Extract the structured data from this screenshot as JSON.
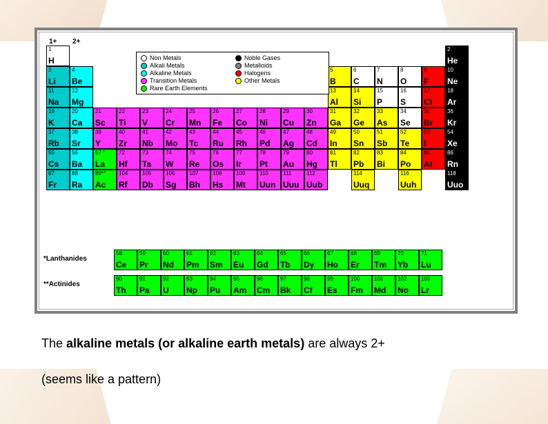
{
  "colors": {
    "nonmetal": "#ffffff",
    "alkali": "#00cccc",
    "alkaline": "#00ffff",
    "transition": "#ff33ff",
    "rare": "#00ff00",
    "noble": "#000000",
    "metalloid": "#808080",
    "halogen": "#ff0000",
    "other": "#ffff00"
  },
  "group_headers": [
    "1+",
    "2+"
  ],
  "legend": [
    {
      "label": "Non Metals",
      "ckey": "nonmetal"
    },
    {
      "label": "Noble Gases",
      "ckey": "noble"
    },
    {
      "label": "Alkali Metals",
      "ckey": "alkali"
    },
    {
      "label": "Metalloids",
      "ckey": "metalloid"
    },
    {
      "label": "Alkaline Metals",
      "ckey": "alkaline"
    },
    {
      "label": "Halogens",
      "ckey": "halogen"
    },
    {
      "label": "Transition Metals",
      "ckey": "transition"
    },
    {
      "label": "Other Metals",
      "ckey": "other"
    },
    {
      "label": "Rare Earth Elements",
      "ckey": "rare"
    }
  ],
  "rows": [
    [
      {
        "n": "1",
        "s": "H",
        "c": "nonmetal"
      },
      null,
      null,
      null,
      null,
      null,
      null,
      null,
      null,
      null,
      null,
      null,
      null,
      null,
      null,
      null,
      null,
      {
        "n": "2",
        "s": "He",
        "c": "noble"
      }
    ],
    [
      {
        "n": "3",
        "s": "Li",
        "c": "alkali"
      },
      {
        "n": "4",
        "s": "Be",
        "c": "alkaline"
      },
      null,
      null,
      null,
      null,
      null,
      null,
      null,
      null,
      null,
      null,
      {
        "n": "5",
        "s": "B",
        "c": "other"
      },
      {
        "n": "6",
        "s": "C",
        "c": "nonmetal"
      },
      {
        "n": "7",
        "s": "N",
        "c": "nonmetal"
      },
      {
        "n": "8",
        "s": "O",
        "c": "nonmetal"
      },
      {
        "n": "9",
        "s": "F",
        "c": "halogen"
      },
      {
        "n": "10",
        "s": "Ne",
        "c": "noble"
      }
    ],
    [
      {
        "n": "11",
        "s": "Na",
        "c": "alkali"
      },
      {
        "n": "12",
        "s": "Mg",
        "c": "alkaline"
      },
      null,
      null,
      null,
      null,
      null,
      null,
      null,
      null,
      null,
      null,
      {
        "n": "13",
        "s": "Al",
        "c": "other"
      },
      {
        "n": "14",
        "s": "Si",
        "c": "other"
      },
      {
        "n": "15",
        "s": "P",
        "c": "nonmetal"
      },
      {
        "n": "16",
        "s": "S",
        "c": "nonmetal"
      },
      {
        "n": "17",
        "s": "Cl",
        "c": "halogen"
      },
      {
        "n": "18",
        "s": "Ar",
        "c": "noble"
      }
    ],
    [
      {
        "n": "19",
        "s": "K",
        "c": "alkali"
      },
      {
        "n": "20",
        "s": "Ca",
        "c": "alkaline"
      },
      {
        "n": "21",
        "s": "Sc",
        "c": "transition"
      },
      {
        "n": "22",
        "s": "Ti",
        "c": "transition"
      },
      {
        "n": "23",
        "s": "V",
        "c": "transition"
      },
      {
        "n": "24",
        "s": "Cr",
        "c": "transition"
      },
      {
        "n": "25",
        "s": "Mn",
        "c": "transition"
      },
      {
        "n": "26",
        "s": "Fe",
        "c": "transition"
      },
      {
        "n": "27",
        "s": "Co",
        "c": "transition"
      },
      {
        "n": "28",
        "s": "Ni",
        "c": "transition"
      },
      {
        "n": "29",
        "s": "Cu",
        "c": "transition"
      },
      {
        "n": "30",
        "s": "Zn",
        "c": "transition"
      },
      {
        "n": "31",
        "s": "Ga",
        "c": "other"
      },
      {
        "n": "32",
        "s": "Ge",
        "c": "other"
      },
      {
        "n": "33",
        "s": "As",
        "c": "other"
      },
      {
        "n": "34",
        "s": "Se",
        "c": "nonmetal"
      },
      {
        "n": "35",
        "s": "Br",
        "c": "halogen"
      },
      {
        "n": "36",
        "s": "Kr",
        "c": "noble"
      }
    ],
    [
      {
        "n": "37",
        "s": "Rb",
        "c": "alkali"
      },
      {
        "n": "38",
        "s": "Sr",
        "c": "alkaline"
      },
      {
        "n": "39",
        "s": "Y",
        "c": "transition"
      },
      {
        "n": "40",
        "s": "Zr",
        "c": "transition"
      },
      {
        "n": "41",
        "s": "Nb",
        "c": "transition"
      },
      {
        "n": "42",
        "s": "Mo",
        "c": "transition"
      },
      {
        "n": "43",
        "s": "Tc",
        "c": "transition"
      },
      {
        "n": "44",
        "s": "Ru",
        "c": "transition"
      },
      {
        "n": "45",
        "s": "Rh",
        "c": "transition"
      },
      {
        "n": "46",
        "s": "Pd",
        "c": "transition"
      },
      {
        "n": "47",
        "s": "Ag",
        "c": "transition"
      },
      {
        "n": "48",
        "s": "Cd",
        "c": "transition"
      },
      {
        "n": "49",
        "s": "In",
        "c": "other"
      },
      {
        "n": "50",
        "s": "Sn",
        "c": "other"
      },
      {
        "n": "51",
        "s": "Sb",
        "c": "other"
      },
      {
        "n": "52",
        "s": "Te",
        "c": "other"
      },
      {
        "n": "53",
        "s": "I",
        "c": "halogen"
      },
      {
        "n": "54",
        "s": "Xe",
        "c": "noble"
      }
    ],
    [
      {
        "n": "55",
        "s": "Cs",
        "c": "alkali"
      },
      {
        "n": "56",
        "s": "Ba",
        "c": "alkaline"
      },
      {
        "n": "57 *",
        "s": "La",
        "c": "rare"
      },
      {
        "n": "72",
        "s": "Hf",
        "c": "transition"
      },
      {
        "n": "73",
        "s": "Ta",
        "c": "transition"
      },
      {
        "n": "74",
        "s": "W",
        "c": "transition"
      },
      {
        "n": "75",
        "s": "Re",
        "c": "transition"
      },
      {
        "n": "76",
        "s": "Os",
        "c": "transition"
      },
      {
        "n": "77",
        "s": "Ir",
        "c": "transition"
      },
      {
        "n": "78",
        "s": "Pt",
        "c": "transition"
      },
      {
        "n": "79",
        "s": "Au",
        "c": "transition"
      },
      {
        "n": "80",
        "s": "Hg",
        "c": "transition"
      },
      {
        "n": "81",
        "s": "Tl",
        "c": "other"
      },
      {
        "n": "82",
        "s": "Pb",
        "c": "other"
      },
      {
        "n": "83",
        "s": "Bi",
        "c": "other"
      },
      {
        "n": "84",
        "s": "Po",
        "c": "other"
      },
      {
        "n": "85",
        "s": "At",
        "c": "halogen"
      },
      {
        "n": "86",
        "s": "Rn",
        "c": "noble"
      }
    ],
    [
      {
        "n": "87",
        "s": "Fr",
        "c": "alkali"
      },
      {
        "n": "88",
        "s": "Ra",
        "c": "alkaline"
      },
      {
        "n": "89**",
        "s": "Ac",
        "c": "rare"
      },
      {
        "n": "104",
        "s": "Rf",
        "c": "transition"
      },
      {
        "n": "105",
        "s": "Db",
        "c": "transition"
      },
      {
        "n": "106",
        "s": "Sg",
        "c": "transition"
      },
      {
        "n": "107",
        "s": "Bh",
        "c": "transition"
      },
      {
        "n": "108",
        "s": "Hs",
        "c": "transition"
      },
      {
        "n": "109",
        "s": "Mt",
        "c": "transition"
      },
      {
        "n": "110",
        "s": "Uun",
        "c": "transition"
      },
      {
        "n": "111",
        "s": "Uuu",
        "c": "transition"
      },
      {
        "n": "112",
        "s": "Uub",
        "c": "transition"
      },
      null,
      {
        "n": "114",
        "s": "Uuq",
        "c": "other"
      },
      null,
      {
        "n": "116",
        "s": "Uuh",
        "c": "other"
      },
      null,
      {
        "n": "118",
        "s": "Uuo",
        "c": "noble"
      }
    ]
  ],
  "lanthanides": [
    {
      "n": "58",
      "s": "Ce"
    },
    {
      "n": "59",
      "s": "Pr"
    },
    {
      "n": "60",
      "s": "Nd"
    },
    {
      "n": "61",
      "s": "Pm"
    },
    {
      "n": "62",
      "s": "Sm"
    },
    {
      "n": "63",
      "s": "Eu"
    },
    {
      "n": "64",
      "s": "Gd"
    },
    {
      "n": "65",
      "s": "Tb"
    },
    {
      "n": "66",
      "s": "Dy"
    },
    {
      "n": "67",
      "s": "Ho"
    },
    {
      "n": "68",
      "s": "Er"
    },
    {
      "n": "69",
      "s": "Tm"
    },
    {
      "n": "70",
      "s": "Yb"
    },
    {
      "n": "71",
      "s": "Lu"
    }
  ],
  "actinides": [
    {
      "n": "90",
      "s": "Th"
    },
    {
      "n": "91",
      "s": "Pa"
    },
    {
      "n": "92",
      "s": "U"
    },
    {
      "n": "93",
      "s": "Np"
    },
    {
      "n": "94",
      "s": "Pu"
    },
    {
      "n": "95",
      "s": "Am"
    },
    {
      "n": "96",
      "s": "Cm"
    },
    {
      "n": "97",
      "s": "Bk"
    },
    {
      "n": "98",
      "s": "Cf"
    },
    {
      "n": "99",
      "s": "Es"
    },
    {
      "n": "100",
      "s": "Fm"
    },
    {
      "n": "101",
      "s": "Md"
    },
    {
      "n": "102",
      "s": "No"
    },
    {
      "n": "103",
      "s": "Lr"
    }
  ],
  "series_labels": {
    "lanth": "*Lanthanides",
    "act": "**Actinides"
  },
  "caption1_pre": "The ",
  "caption1_bold": "alkaline metals (or alkaline earth metals)",
  "caption1_post": " are always 2+",
  "caption2": "(seems like a pattern)"
}
